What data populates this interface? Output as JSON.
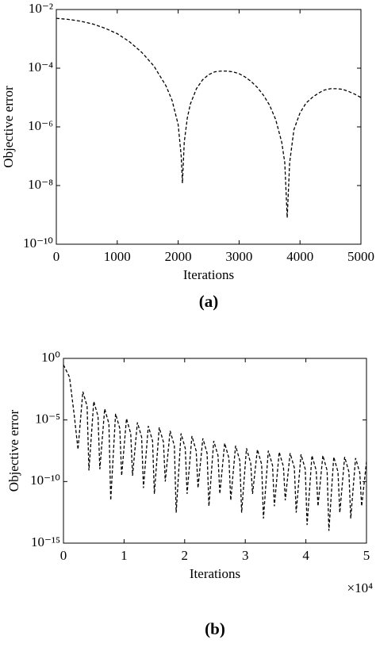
{
  "chart_data": [
    {
      "type": "line",
      "caption": "(a)",
      "xlabel": "Iterations",
      "ylabel": "Objective error",
      "yscale": "log",
      "color": "#000000",
      "line_style": "dashed",
      "xlim": [
        0,
        5000
      ],
      "xticks": [
        0,
        1000,
        2000,
        3000,
        4000,
        5000
      ],
      "ylim": [
        1e-10,
        0.01
      ],
      "yticks": [
        {
          "value": 0.01,
          "label": "10⁻²"
        },
        {
          "value": 0.0001,
          "label": "10⁻⁴"
        },
        {
          "value": 1e-06,
          "label": "10⁻⁶"
        },
        {
          "value": 1e-08,
          "label": "10⁻⁸"
        },
        {
          "value": 1e-10,
          "label": "10⁻¹⁰"
        }
      ],
      "x": [
        0,
        200,
        400,
        600,
        800,
        1000,
        1200,
        1400,
        1600,
        1800,
        1900,
        2000,
        2050,
        2070,
        2100,
        2150,
        2200,
        2300,
        2400,
        2500,
        2600,
        2700,
        2800,
        2900,
        3000,
        3100,
        3200,
        3300,
        3400,
        3500,
        3600,
        3700,
        3750,
        3790,
        3830,
        3900,
        4000,
        4100,
        4200,
        4300,
        4400,
        4500,
        4600,
        4700,
        4800,
        4900,
        5000
      ],
      "values": [
        0.005,
        0.0046,
        0.004,
        0.0032,
        0.0023,
        0.0015,
        0.0008,
        0.00035,
        0.00012,
        2.5e-05,
        8e-06,
        1.2e-06,
        1e-07,
        1.2e-08,
        3e-07,
        2e-06,
        6e-06,
        2e-05,
        4e-05,
        6e-05,
        7.5e-05,
        8e-05,
        8e-05,
        7.5e-05,
        6.5e-05,
        5e-05,
        3.5e-05,
        2.2e-05,
        1.2e-05,
        5.5e-06,
        1.8e-06,
        3e-07,
        6e-08,
        8e-10,
        6e-08,
        8e-07,
        3e-06,
        6.5e-06,
        1e-05,
        1.4e-05,
        1.8e-05,
        2e-05,
        2e-05,
        1.9e-05,
        1.6e-05,
        1.3e-05,
        1e-05
      ]
    },
    {
      "type": "line",
      "caption": "(b)",
      "xlabel": "Iterations",
      "ylabel": "Objective error",
      "x_multiplier": "×10⁴",
      "yscale": "log",
      "color": "#000000",
      "line_style": "dashed",
      "xlim": [
        0,
        5
      ],
      "xticks": [
        0,
        1,
        2,
        3,
        4,
        5
      ],
      "ylim": [
        1e-15,
        1
      ],
      "yticks": [
        {
          "value": 1,
          "label": "10⁰"
        },
        {
          "value": 1e-05,
          "label": "10⁻⁵"
        },
        {
          "value": 1e-10,
          "label": "10⁻¹⁰"
        },
        {
          "value": 1e-15,
          "label": "10⁻¹⁵"
        }
      ],
      "x": [
        0,
        0.1,
        0.18,
        0.24,
        0.32,
        0.39,
        0.42,
        0.5,
        0.57,
        0.6,
        0.68,
        0.75,
        0.78,
        0.86,
        0.93,
        0.96,
        1.04,
        1.11,
        1.14,
        1.22,
        1.29,
        1.32,
        1.4,
        1.47,
        1.5,
        1.58,
        1.65,
        1.68,
        1.76,
        1.83,
        1.86,
        1.94,
        2.01,
        2.04,
        2.12,
        2.19,
        2.22,
        2.3,
        2.37,
        2.4,
        2.48,
        2.55,
        2.58,
        2.66,
        2.73,
        2.76,
        2.84,
        2.91,
        2.94,
        3.02,
        3.09,
        3.12,
        3.2,
        3.27,
        3.3,
        3.38,
        3.45,
        3.48,
        3.56,
        3.63,
        3.66,
        3.74,
        3.81,
        3.84,
        3.92,
        3.99,
        4.02,
        4.1,
        4.17,
        4.2,
        4.28,
        4.35,
        4.38,
        4.46,
        4.53,
        4.56,
        4.64,
        4.71,
        4.74,
        4.82,
        4.89,
        4.92,
        5.0
      ],
      "values": [
        0.3,
        0.03,
        2e-05,
        4e-08,
        0.002,
        0.00013,
        8e-10,
        0.00032,
        2e-05,
        1e-09,
        8e-05,
        5e-06,
        3e-12,
        3.2e-05,
        2e-06,
        3e-10,
        1.3e-05,
        8e-07,
        3e-10,
        6.3e-06,
        4e-07,
        3e-11,
        3.2e-06,
        2e-07,
        1e-11,
        2.5e-06,
        1.6e-07,
        1e-10,
        1.3e-06,
        8e-08,
        3e-13,
        8e-07,
        5e-08,
        1e-11,
        5e-07,
        3e-08,
        3e-11,
        3.2e-07,
        2e-08,
        1e-12,
        2e-07,
        1.3e-08,
        1e-11,
        1.3e-07,
        8e-09,
        3e-12,
        8e-08,
        5e-09,
        3e-13,
        5e-08,
        3e-09,
        1e-11,
        4e-08,
        2.5e-09,
        1e-13,
        3.2e-08,
        2e-09,
        1e-12,
        2.5e-08,
        1.6e-09,
        3e-12,
        2e-08,
        1.3e-09,
        3e-13,
        1.6e-08,
        1e-09,
        3e-14,
        1.3e-08,
        8e-10,
        1e-12,
        1.3e-08,
        8e-10,
        1e-14,
        1e-08,
        6e-10,
        3e-13,
        1e-08,
        6e-10,
        1e-13,
        8e-09,
        5e-10,
        1e-12,
        4e-09
      ]
    }
  ]
}
